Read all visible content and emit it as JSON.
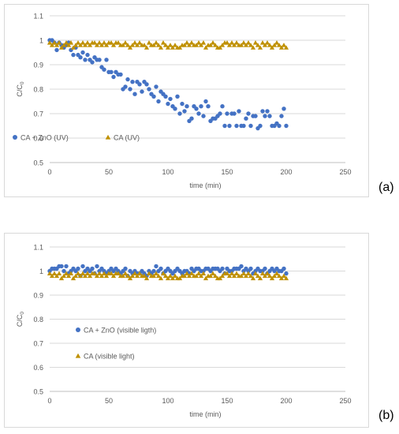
{
  "panels": [
    {
      "tag": "(a)",
      "chart_data": {
        "type": "scatter",
        "title": "",
        "xlabel": "time (min)",
        "ylabel": "C/C",
        "ylabel_subscript": "0",
        "xlim": [
          0,
          250
        ],
        "ylim": [
          0.5,
          1.1
        ],
        "xticks": [
          0,
          50,
          100,
          150,
          200,
          250
        ],
        "yticks": [
          0.5,
          0.6,
          0.7,
          0.8,
          0.9,
          1,
          1.1
        ],
        "ytick_labels": [
          "0.5",
          "0.6",
          "0.7",
          "0.8",
          "0.9",
          "1",
          "1.1"
        ],
        "grid": true,
        "legend": "inside, lower-left, horizontal",
        "series": [
          {
            "name": "CA + ZnO (UV)",
            "marker": "circle",
            "color": "#4472C4",
            "x": [
              0,
              2,
              4,
              6,
              8,
              10,
              12,
              14,
              16,
              18,
              20,
              22,
              24,
              26,
              28,
              30,
              32,
              34,
              36,
              38,
              40,
              42,
              44,
              46,
              48,
              50,
              52,
              54,
              56,
              58,
              60,
              62,
              64,
              66,
              68,
              70,
              72,
              74,
              76,
              78,
              80,
              82,
              84,
              86,
              88,
              90,
              92,
              94,
              96,
              98,
              100,
              102,
              104,
              106,
              108,
              110,
              112,
              114,
              116,
              118,
              120,
              122,
              124,
              126,
              128,
              130,
              132,
              134,
              136,
              138,
              140,
              142,
              144,
              146,
              148,
              150,
              152,
              154,
              156,
              158,
              160,
              162,
              164,
              166,
              168,
              170,
              172,
              174,
              176,
              178,
              180,
              182,
              184,
              186,
              188,
              190,
              192,
              194,
              196,
              198,
              200
            ],
            "y": [
              1.0,
              1.0,
              0.99,
              0.96,
              0.99,
              0.98,
              0.97,
              0.98,
              0.99,
              0.96,
              0.94,
              0.97,
              0.94,
              0.93,
              0.95,
              0.92,
              0.94,
              0.92,
              0.91,
              0.93,
              0.92,
              0.92,
              0.89,
              0.88,
              0.92,
              0.87,
              0.87,
              0.85,
              0.87,
              0.86,
              0.86,
              0.8,
              0.81,
              0.84,
              0.8,
              0.83,
              0.78,
              0.83,
              0.82,
              0.79,
              0.83,
              0.82,
              0.8,
              0.78,
              0.77,
              0.81,
              0.75,
              0.79,
              0.78,
              0.77,
              0.74,
              0.76,
              0.73,
              0.72,
              0.77,
              0.7,
              0.74,
              0.71,
              0.73,
              0.67,
              0.68,
              0.73,
              0.72,
              0.7,
              0.73,
              0.69,
              0.75,
              0.73,
              0.67,
              0.68,
              0.68,
              0.69,
              0.7,
              0.73,
              0.65,
              0.7,
              0.65,
              0.7,
              0.7,
              0.65,
              0.71,
              0.65,
              0.65,
              0.68,
              0.7,
              0.65,
              0.69,
              0.69,
              0.64,
              0.65,
              0.71,
              0.69,
              0.71,
              0.69,
              0.65,
              0.65,
              0.66,
              0.65,
              0.69,
              0.72,
              0.65
            ]
          },
          {
            "name": "CA (UV)",
            "marker": "triangle",
            "color": "#BF9000",
            "x": [
              0,
              2,
              4,
              6,
              8,
              10,
              12,
              14,
              16,
              18,
              20,
              22,
              24,
              26,
              28,
              30,
              32,
              34,
              36,
              38,
              40,
              42,
              44,
              46,
              48,
              50,
              52,
              54,
              56,
              58,
              60,
              62,
              64,
              66,
              68,
              70,
              72,
              74,
              76,
              78,
              80,
              82,
              84,
              86,
              88,
              90,
              92,
              94,
              96,
              98,
              100,
              102,
              104,
              106,
              108,
              110,
              112,
              114,
              116,
              118,
              120,
              122,
              124,
              126,
              128,
              130,
              132,
              134,
              136,
              138,
              140,
              142,
              144,
              146,
              148,
              150,
              152,
              154,
              156,
              158,
              160,
              162,
              164,
              166,
              168,
              170,
              172,
              174,
              176,
              178,
              180,
              182,
              184,
              186,
              188,
              190,
              192,
              194,
              196,
              198,
              200
            ],
            "y": [
              0.99,
              0.98,
              0.99,
              0.98,
              0.99,
              0.97,
              0.98,
              0.99,
              0.98,
              0.99,
              0.97,
              0.98,
              0.99,
              0.98,
              0.99,
              0.98,
              0.99,
              0.98,
              0.99,
              0.99,
              0.98,
              0.99,
              0.98,
              0.99,
              0.98,
              0.99,
              0.99,
              0.98,
              0.99,
              0.99,
              0.98,
              0.98,
              0.99,
              0.98,
              0.97,
              0.98,
              0.99,
              0.98,
              0.99,
              0.98,
              0.98,
              0.97,
              0.99,
              0.98,
              0.98,
              0.99,
              0.98,
              0.97,
              0.99,
              0.98,
              0.97,
              0.98,
              0.97,
              0.98,
              0.97,
              0.97,
              0.98,
              0.98,
              0.99,
              0.98,
              0.99,
              0.98,
              0.98,
              0.99,
              0.98,
              0.99,
              0.97,
              0.98,
              0.98,
              0.99,
              0.98,
              0.97,
              0.97,
              0.98,
              0.99,
              0.99,
              0.98,
              0.99,
              0.98,
              0.99,
              0.98,
              0.98,
              0.99,
              0.98,
              0.99,
              0.98,
              0.97,
              0.99,
              0.98,
              0.97,
              0.99,
              0.98,
              0.99,
              0.98,
              0.97,
              0.98,
              0.99,
              0.98,
              0.97,
              0.98,
              0.97
            ]
          }
        ]
      }
    },
    {
      "tag": "(b)",
      "chart_data": {
        "type": "scatter",
        "title": "",
        "xlabel": "time (min)",
        "ylabel": "C/C",
        "ylabel_subscript": "0",
        "xlim": [
          0,
          250
        ],
        "ylim": [
          0.5,
          1.1
        ],
        "xticks": [
          0,
          50,
          100,
          150,
          200,
          250
        ],
        "yticks": [
          0.5,
          0.6,
          0.7,
          0.8,
          0.9,
          1,
          1.1
        ],
        "ytick_labels": [
          "0.5",
          "0.6",
          "0.7",
          "0.8",
          "0.9",
          "1",
          "1.1"
        ],
        "grid": true,
        "legend": "inside, left, vertical",
        "series": [
          {
            "name": "CA + ZnO (visible ligth)",
            "marker": "circle",
            "color": "#4472C4",
            "x": [
              0,
              2,
              4,
              6,
              8,
              10,
              12,
              14,
              16,
              18,
              20,
              22,
              24,
              26,
              28,
              30,
              32,
              34,
              36,
              38,
              40,
              42,
              44,
              46,
              48,
              50,
              52,
              54,
              56,
              58,
              60,
              62,
              64,
              66,
              68,
              70,
              72,
              74,
              76,
              78,
              80,
              82,
              84,
              86,
              88,
              90,
              92,
              94,
              96,
              98,
              100,
              102,
              104,
              106,
              108,
              110,
              112,
              114,
              116,
              118,
              120,
              122,
              124,
              126,
              128,
              130,
              132,
              134,
              136,
              138,
              140,
              142,
              144,
              146,
              148,
              150,
              152,
              154,
              156,
              158,
              160,
              162,
              164,
              166,
              168,
              170,
              172,
              174,
              176,
              178,
              180,
              182,
              184,
              186,
              188,
              190,
              192,
              194,
              196,
              198,
              200
            ],
            "y": [
              1.0,
              1.01,
              1.01,
              1.01,
              1.02,
              1.02,
              1.0,
              1.02,
              0.99,
              1.0,
              1.01,
              1.0,
              1.01,
              0.98,
              1.02,
              1.0,
              1.01,
              1.0,
              1.01,
              0.99,
              1.02,
              1.0,
              1.01,
              1.0,
              0.99,
              1.0,
              1.01,
              1.0,
              1.01,
              1.0,
              0.99,
              1.0,
              1.01,
              0.98,
              1.0,
              0.99,
              1.0,
              0.99,
              0.99,
              1.0,
              0.99,
              0.98,
              1.0,
              0.99,
              1.0,
              1.02,
              1.0,
              1.01,
              0.99,
              1.0,
              1.01,
              1.0,
              0.99,
              1.0,
              1.01,
              1.0,
              0.99,
              1.0,
              1.0,
              0.99,
              1.01,
              1.0,
              1.01,
              1.01,
              1.0,
              1.0,
              1.01,
              1.01,
              1.0,
              1.01,
              1.01,
              1.01,
              1.0,
              1.01,
              0.99,
              1.01,
              1.0,
              1.0,
              1.01,
              1.01,
              1.01,
              1.02,
              1.0,
              1.01,
              1.0,
              1.01,
              0.99,
              1.0,
              1.01,
              1.0,
              1.0,
              1.01,
              0.99,
              1.0,
              1.01,
              1.0,
              1.01,
              1.0,
              1.0,
              1.01,
              0.99
            ]
          },
          {
            "name": "CA (visible light)",
            "marker": "triangle",
            "color": "#BF9000",
            "x": [
              0,
              2,
              4,
              6,
              8,
              10,
              12,
              14,
              16,
              18,
              20,
              22,
              24,
              26,
              28,
              30,
              32,
              34,
              36,
              38,
              40,
              42,
              44,
              46,
              48,
              50,
              52,
              54,
              56,
              58,
              60,
              62,
              64,
              66,
              68,
              70,
              72,
              74,
              76,
              78,
              80,
              82,
              84,
              86,
              88,
              90,
              92,
              94,
              96,
              98,
              100,
              102,
              104,
              106,
              108,
              110,
              112,
              114,
              116,
              118,
              120,
              122,
              124,
              126,
              128,
              130,
              132,
              134,
              136,
              138,
              140,
              142,
              144,
              146,
              148,
              150,
              152,
              154,
              156,
              158,
              160,
              162,
              164,
              166,
              168,
              170,
              172,
              174,
              176,
              178,
              180,
              182,
              184,
              186,
              188,
              190,
              192,
              194,
              196,
              198,
              200
            ],
            "y": [
              0.99,
              0.98,
              0.99,
              0.98,
              0.99,
              0.97,
              0.98,
              0.99,
              0.98,
              0.99,
              0.97,
              0.98,
              0.99,
              0.98,
              0.99,
              0.98,
              0.99,
              0.98,
              0.99,
              0.99,
              0.98,
              0.99,
              0.98,
              0.99,
              0.98,
              0.99,
              0.99,
              0.98,
              0.99,
              0.99,
              0.98,
              0.98,
              0.99,
              0.98,
              0.97,
              0.98,
              0.99,
              0.98,
              0.99,
              0.98,
              0.98,
              0.97,
              0.99,
              0.98,
              0.98,
              0.99,
              0.98,
              0.97,
              0.99,
              0.98,
              0.97,
              0.98,
              0.97,
              0.98,
              0.97,
              0.97,
              0.98,
              0.98,
              0.99,
              0.98,
              0.99,
              0.98,
              0.98,
              0.99,
              0.98,
              0.99,
              0.97,
              0.98,
              0.98,
              0.99,
              0.98,
              0.97,
              0.97,
              0.98,
              0.99,
              0.99,
              0.98,
              0.99,
              0.98,
              0.99,
              0.98,
              0.98,
              0.99,
              0.98,
              0.99,
              0.98,
              0.97,
              0.99,
              0.98,
              0.97,
              0.99,
              0.98,
              0.99,
              0.98,
              0.97,
              0.98,
              0.99,
              0.98,
              0.97,
              0.98,
              0.97
            ]
          }
        ]
      }
    }
  ]
}
